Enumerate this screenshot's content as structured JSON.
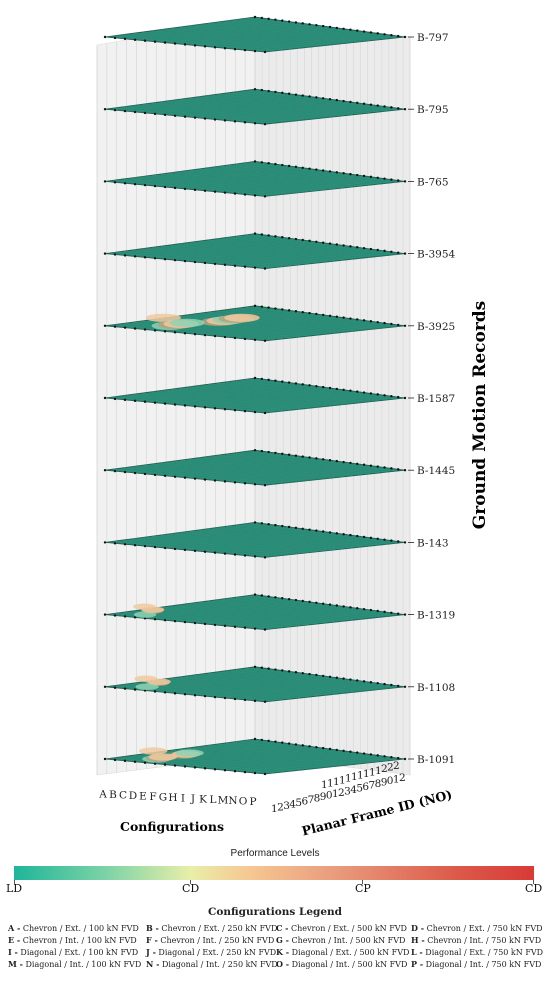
{
  "chart_data": {
    "type": "surface-3d-stack",
    "z_axis_label": "Ground Motion Records",
    "x_axis_label": "Configurations",
    "y_axis_label": "Planar Frame ID (NO)",
    "configurations": [
      "A",
      "B",
      "C",
      "D",
      "E",
      "F",
      "G",
      "H",
      "I",
      "J",
      "K",
      "L",
      "M",
      "N",
      "O",
      "P"
    ],
    "frame_ids_top": [
      "1",
      "1",
      "1",
      "1",
      "1",
      "1",
      "1",
      "1",
      "1",
      "1",
      "2",
      "2",
      "2"
    ],
    "frame_ids_bottom": [
      "1",
      "2",
      "3",
      "4",
      "5",
      "6",
      "7",
      "8",
      "9",
      "0",
      "1",
      "2",
      "3",
      "4",
      "5",
      "6",
      "7",
      "8",
      "9",
      "0",
      "1",
      "2"
    ],
    "records": [
      "B-797",
      "B-795",
      "B-765",
      "B-3954",
      "B-3925",
      "B-1587",
      "B-1445",
      "B-143",
      "B-1319",
      "B-1108",
      "B-1091"
    ],
    "record_damage_share": [
      0,
      0,
      0,
      0,
      0.55,
      0,
      0,
      0,
      0.08,
      0.12,
      0.3
    ],
    "colorbar": {
      "title": "Performance Levels",
      "levels": [
        "LD",
        "CD",
        "CP",
        "CD"
      ],
      "colors": [
        "#1fb59a",
        "#e9eea8",
        "#e99b7c",
        "#d93a36"
      ]
    },
    "surface_base_color": "#2a8a76"
  },
  "legend": {
    "title": "Configurations Legend",
    "items": [
      {
        "key": "A -",
        "text": "Chevron / Ext. / 100 kN FVD"
      },
      {
        "key": "B -",
        "text": "Chevron / Ext. / 250 kN FVD"
      },
      {
        "key": "C -",
        "text": "Chevron / Ext. / 500 kN FVD"
      },
      {
        "key": "D -",
        "text": "Chevron / Ext. / 750 kN FVD"
      },
      {
        "key": "E -",
        "text": "Chevron / Int. / 100 kN FVD"
      },
      {
        "key": "F -",
        "text": "Chevron / Int. / 250 kN FVD"
      },
      {
        "key": "G -",
        "text": "Chevron / Int. / 500 kN FVD"
      },
      {
        "key": "H -",
        "text": "Chevron / Int. / 750 kN FVD"
      },
      {
        "key": "I -",
        "text": "Diagonal / Ext. / 100 kN FVD"
      },
      {
        "key": "J -",
        "text": "Diagonal / Ext. / 250 kN FVD"
      },
      {
        "key": "K -",
        "text": "Diagonal / Ext. / 500 kN FVD"
      },
      {
        "key": "L -",
        "text": "Diagonal / Ext. / 750 kN FVD"
      },
      {
        "key": "M -",
        "text": "Diagonal / Int. / 100 kN FVD"
      },
      {
        "key": "N -",
        "text": "Diagonal / Int. / 250 kN FVD"
      },
      {
        "key": "O -",
        "text": "Diagonal / Int. / 500 kN FVD"
      },
      {
        "key": "P -",
        "text": "Diagonal / Int. / 750 kN FVD"
      }
    ]
  }
}
